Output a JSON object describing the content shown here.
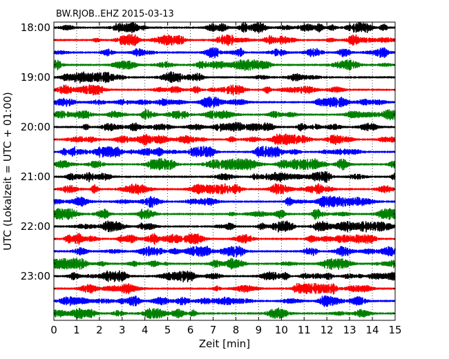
{
  "chart_data": {
    "type": "line",
    "title": "BW.RJOB..EHZ 2015-03-13",
    "xlabel": "Zeit  [min]",
    "ylabel": "UTC (Lokalzeit = UTC + 01:00)",
    "xlim": [
      0,
      15
    ],
    "x_ticks": [
      "0",
      "1",
      "2",
      "3",
      "4",
      "5",
      "6",
      "7",
      "8",
      "9",
      "10",
      "11",
      "12",
      "13",
      "14",
      "15"
    ],
    "y_ticks": [
      "18:00",
      "19:00",
      "20:00",
      "21:00",
      "22:00",
      "23:00"
    ],
    "trace_start_times": [
      "18:00",
      "18:15",
      "18:30",
      "18:45",
      "19:00",
      "19:15",
      "19:30",
      "19:45",
      "20:00",
      "20:15",
      "20:30",
      "20:45",
      "21:00",
      "21:15",
      "21:30",
      "21:45",
      "22:00",
      "22:15",
      "22:30",
      "22:45",
      "23:00",
      "23:15",
      "23:30",
      "23:45"
    ],
    "trace_colors": [
      "#000000",
      "#ff0000",
      "#0000ff",
      "#008000"
    ],
    "grid": "vertical dotted",
    "trace_count": 24
  }
}
